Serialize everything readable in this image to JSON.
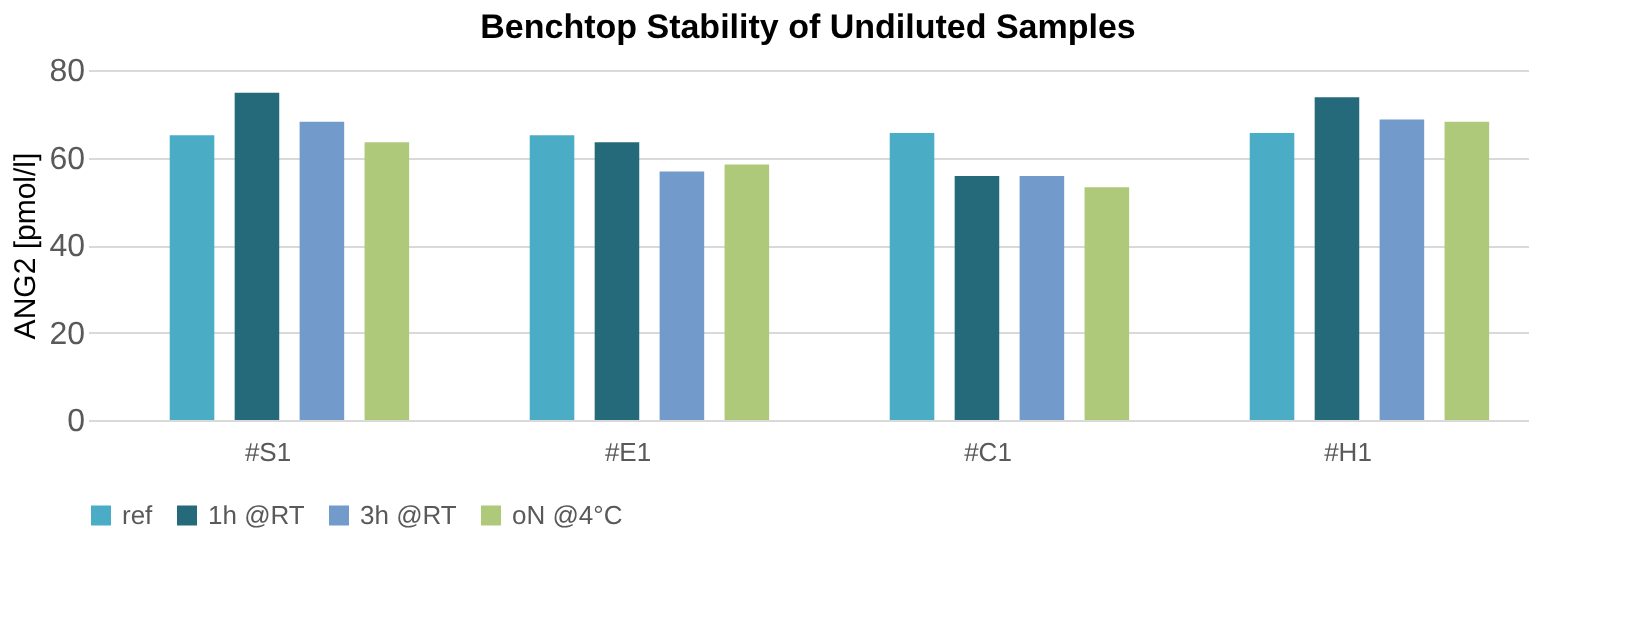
{
  "chart_data": {
    "type": "bar",
    "title": "Benchtop Stability of  Undiluted Samples",
    "ylabel": "ANG2 [pmol/l]",
    "categories": [
      "#S1",
      "#E1",
      "#C1",
      "#H1"
    ],
    "series": [
      {
        "name": "ref",
        "color": "#4bacc6",
        "values": [
          65.1,
          65.1,
          65.6,
          65.6
        ]
      },
      {
        "name": "1h @RT",
        "color": "#256a7b",
        "values": [
          74.8,
          63.5,
          55.8,
          73.8
        ]
      },
      {
        "name": "3h @RT",
        "color": "#729aca",
        "values": [
          68.2,
          56.8,
          55.8,
          68.7
        ]
      },
      {
        "name": "oN @4°C",
        "color": "#afc97a",
        "values": [
          63.5,
          58.4,
          53.2,
          68.2
        ]
      }
    ],
    "ylim": [
      0,
      80
    ],
    "yticks": [
      0,
      20,
      40,
      60,
      80
    ],
    "grid": "y",
    "legend": "bottom"
  }
}
